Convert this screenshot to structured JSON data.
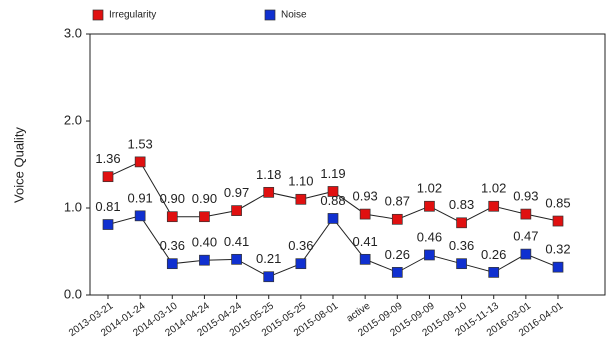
{
  "chart_data": {
    "type": "line",
    "y_label": "Voice Quality",
    "categories": [
      "2013-03-21",
      "2014-01-24",
      "2014-03-10",
      "2014-04-24",
      "2015-04-24",
      "2015-05-25",
      "2015-05-25",
      "2015-08-01",
      "active",
      "2015-09-09",
      "2015-09-09",
      "2015-09-10",
      "2015-11-13",
      "2016-03-01",
      "2016-04-01"
    ],
    "series": [
      {
        "name": "Irregularity",
        "color": "#e01010",
        "values": [
          1.36,
          1.53,
          0.9,
          0.9,
          0.97,
          1.18,
          1.1,
          1.19,
          0.93,
          0.87,
          1.02,
          0.83,
          1.02,
          0.93,
          0.85
        ],
        "value_labels": [
          "1.36",
          "1.53",
          "0.90",
          "0.90",
          "0.97",
          "1.18",
          "1.10",
          "1.19",
          "0.93",
          "0.87",
          "1.02",
          "0.83",
          "1.02",
          "0.93",
          "0.85"
        ]
      },
      {
        "name": "Noise",
        "color": "#1030d0",
        "values": [
          0.81,
          0.91,
          0.36,
          0.4,
          0.41,
          0.21,
          0.36,
          0.88,
          0.41,
          0.26,
          0.46,
          0.36,
          0.26,
          0.47,
          0.32
        ],
        "value_labels": [
          "0.81",
          "0.91",
          "0.36",
          "0.40",
          "0.41",
          "0.21",
          "0.36",
          "0.88",
          "0.41",
          "0.26",
          "0.46",
          "0.36",
          "0.26",
          "0.47",
          "0.32"
        ]
      }
    ],
    "ylim": [
      0,
      3
    ],
    "yticks": [
      {
        "value": 0,
        "label": "0.0"
      },
      {
        "value": 1,
        "label": "1.0"
      },
      {
        "value": 2,
        "label": "2.0"
      },
      {
        "value": 3,
        "label": "3.0"
      }
    ],
    "legend": "top"
  }
}
